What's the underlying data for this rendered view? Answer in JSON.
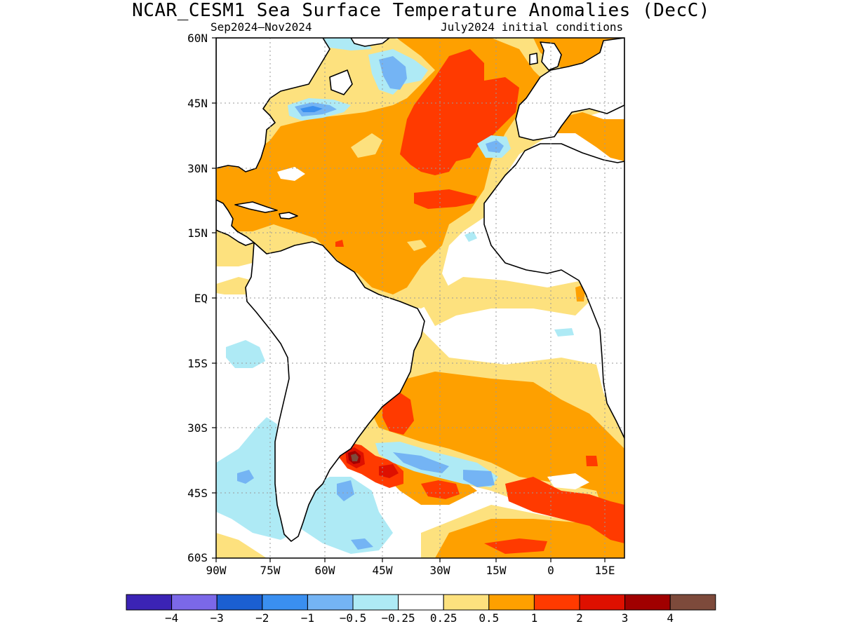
{
  "title": "NCAR_CESM1 Sea Surface Temperature Anomalies (DecC)",
  "period_label": "Sep2024–Nov2024",
  "init_label": "July2024 initial conditions",
  "lat_labels": [
    "60N",
    "45N",
    "30N",
    "15N",
    "EQ",
    "15S",
    "30S",
    "45S",
    "60S"
  ],
  "lon_labels": [
    "90W",
    "75W",
    "60W",
    "45W",
    "30W",
    "15W",
    "0",
    "15E"
  ],
  "colorbar": {
    "colors": [
      "#3b23b5",
      "#7b68e8",
      "#1b5fd1",
      "#3a8ff0",
      "#74b4f4",
      "#aeeaf5",
      "#ffffff",
      "#fde17e",
      "#fea000",
      "#ff3a00",
      "#de1000",
      "#a00000",
      "#7d4a3b"
    ],
    "labels": [
      "−4",
      "−3",
      "−2",
      "−1",
      "−0.5",
      "−0.25",
      "0.25",
      "0.5",
      "1",
      "2",
      "3",
      "4"
    ]
  },
  "palette": {
    "land_line": "#000000",
    "grid": "#9a9a9a",
    "light_yellow": "#fde17e",
    "orange": "#fea000",
    "red_orange": "#ff3a00",
    "red": "#de1000",
    "dark_red": "#a00000",
    "brown": "#7d4a3b",
    "light_cyan": "#aeeaf5",
    "light_blue": "#74b4f4",
    "mid_blue": "#3a8ff0"
  }
}
